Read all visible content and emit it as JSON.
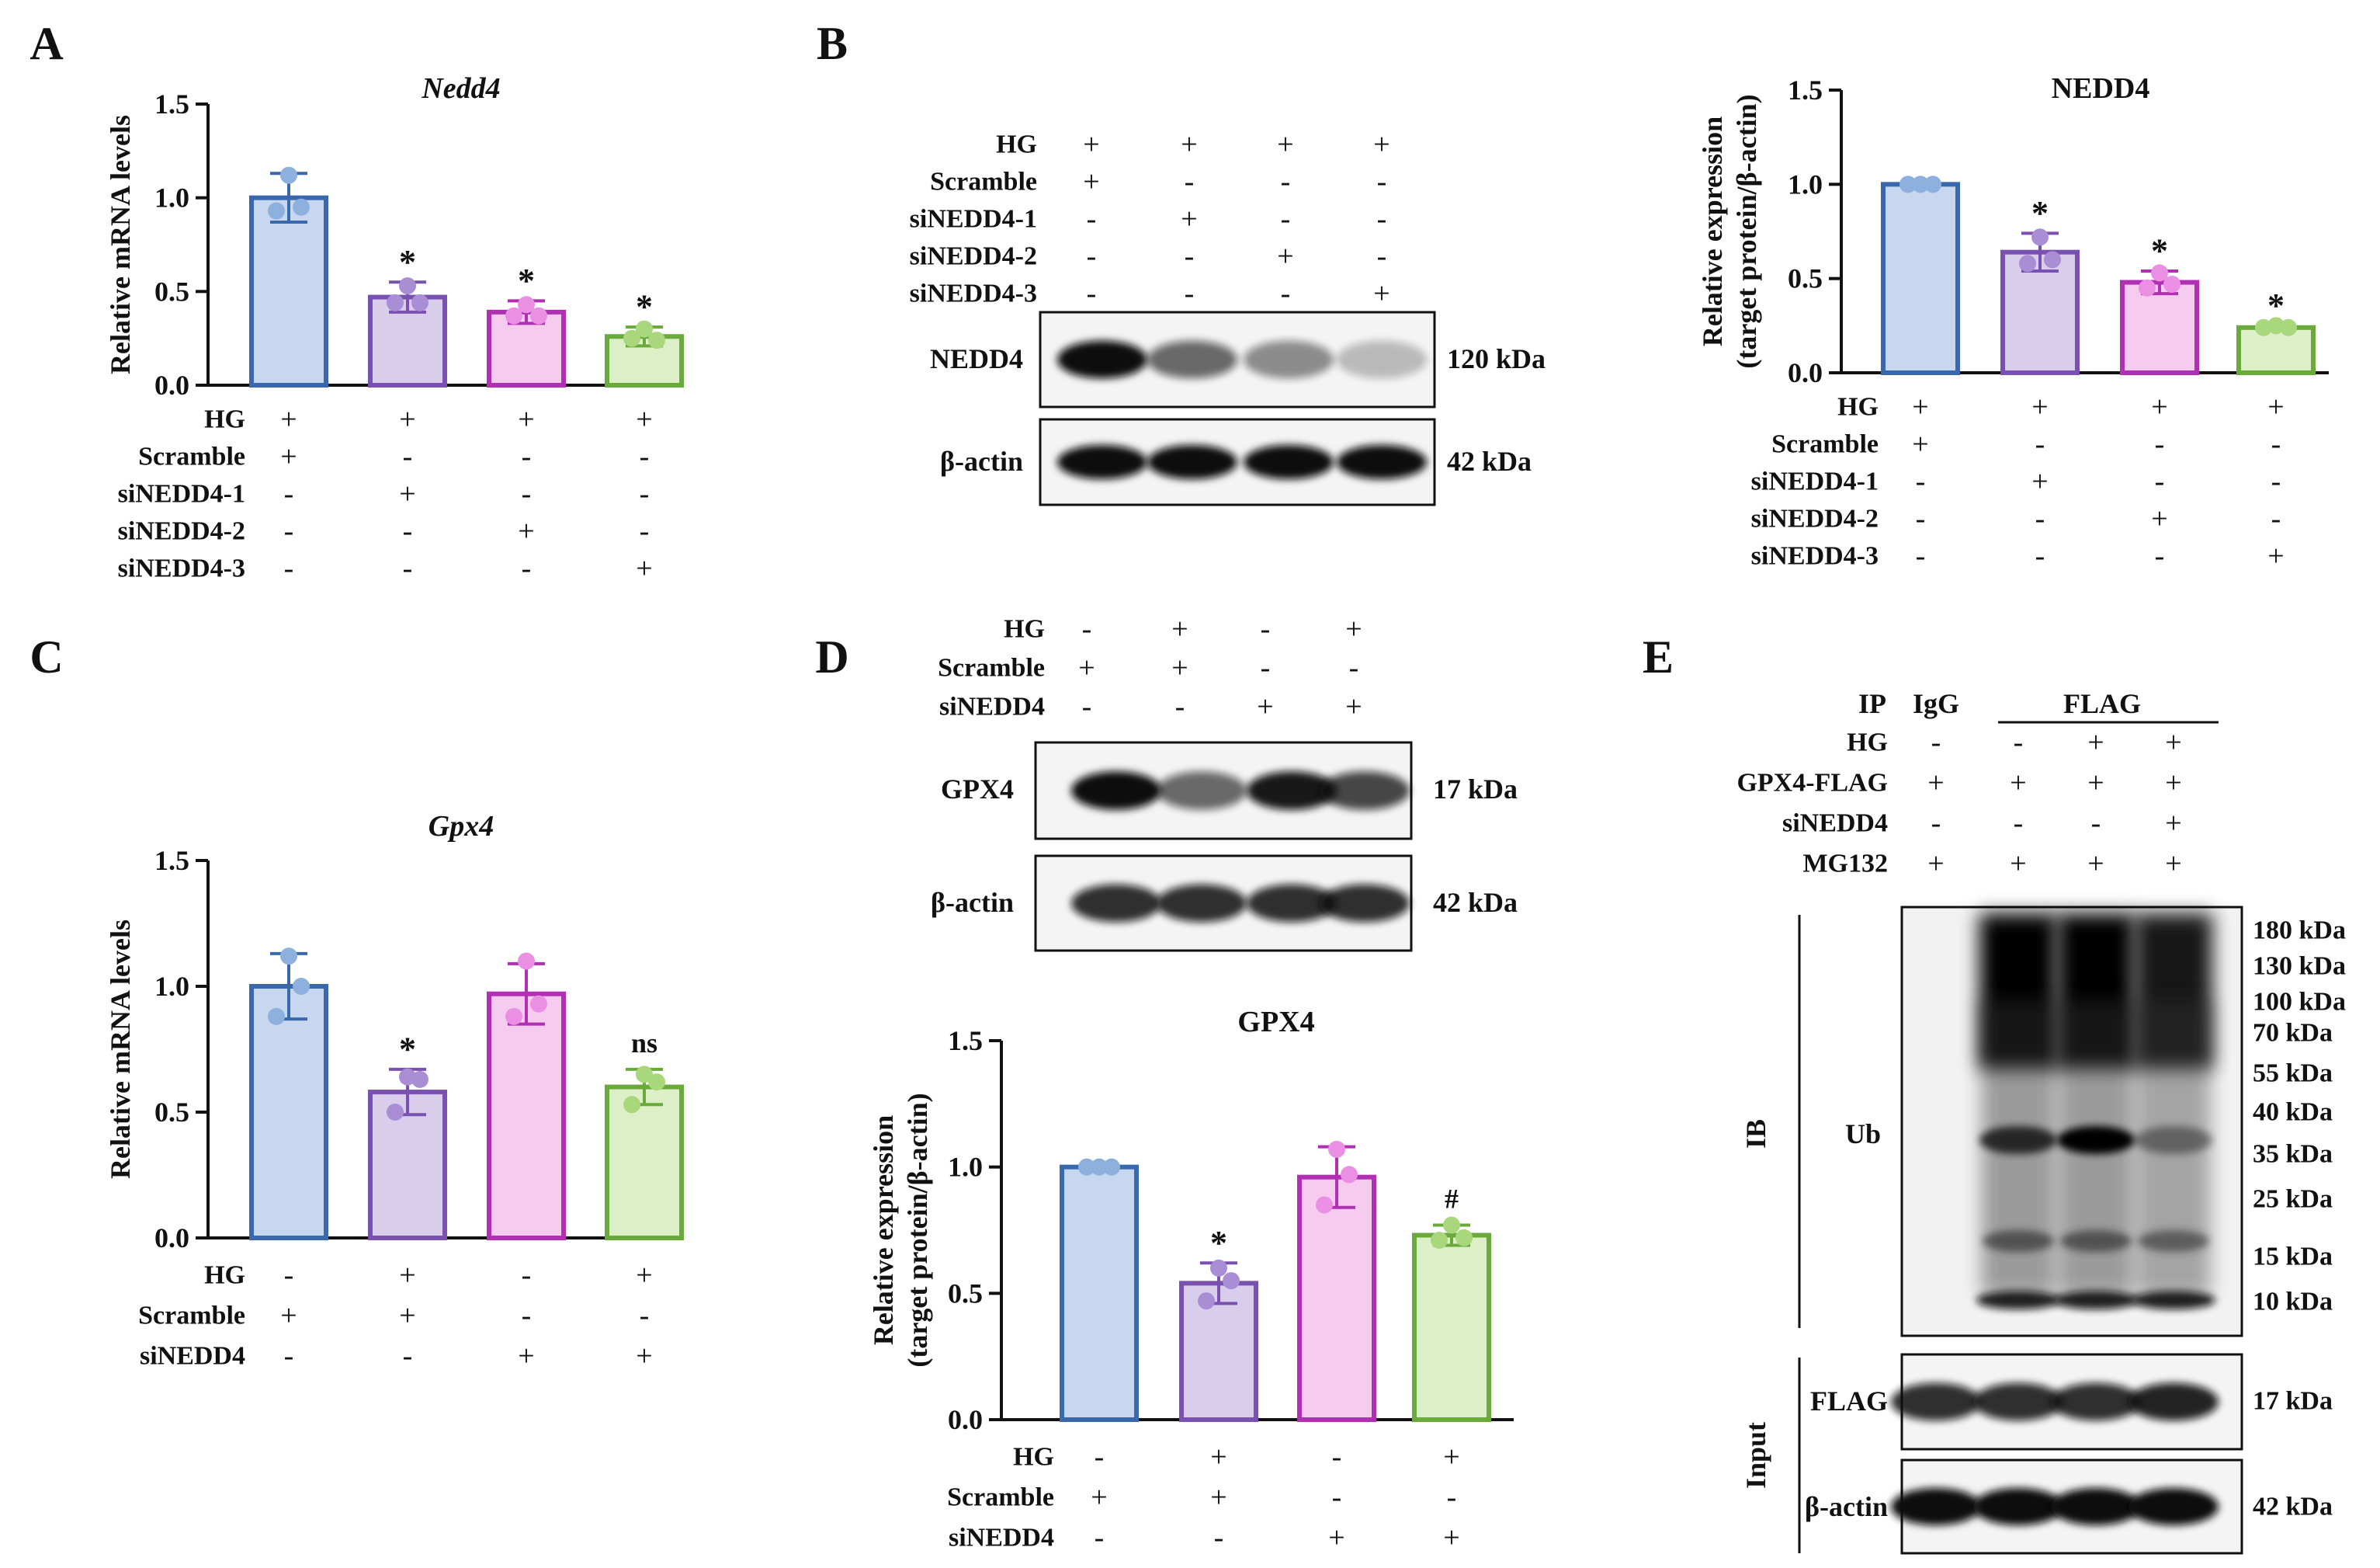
{
  "panels": {
    "A": "A",
    "B": "B",
    "C": "C",
    "D": "D",
    "E": "E"
  },
  "conditions": {
    "A": {
      "rows": [
        {
          "label": "HG",
          "signs": [
            "+",
            "+",
            "+",
            "+"
          ]
        },
        {
          "label": "Scramble",
          "signs": [
            "+",
            "-",
            "-",
            "-"
          ]
        },
        {
          "label": "siNEDD4-1",
          "signs": [
            "-",
            "+",
            "-",
            "-"
          ]
        },
        {
          "label": "siNEDD4-2",
          "signs": [
            "-",
            "-",
            "+",
            "-"
          ]
        },
        {
          "label": "siNEDD4-3",
          "signs": [
            "-",
            "-",
            "-",
            "+"
          ]
        }
      ]
    },
    "B_blot": {
      "rows": [
        {
          "label": "HG",
          "signs": [
            "+",
            "+",
            "+",
            "+"
          ]
        },
        {
          "label": "Scramble",
          "signs": [
            "+",
            "-",
            "-",
            "-"
          ]
        },
        {
          "label": "siNEDD4-1",
          "signs": [
            "-",
            "+",
            "-",
            "-"
          ]
        },
        {
          "label": "siNEDD4-2",
          "signs": [
            "-",
            "-",
            "+",
            "-"
          ]
        },
        {
          "label": "siNEDD4-3",
          "signs": [
            "-",
            "-",
            "-",
            "+"
          ]
        }
      ]
    },
    "B_chart": {
      "rows": [
        {
          "label": "HG",
          "signs": [
            "+",
            "+",
            "+",
            "+"
          ]
        },
        {
          "label": "Scramble",
          "signs": [
            "+",
            "-",
            "-",
            "-"
          ]
        },
        {
          "label": "siNEDD4-1",
          "signs": [
            "-",
            "+",
            "-",
            "-"
          ]
        },
        {
          "label": "siNEDD4-2",
          "signs": [
            "-",
            "-",
            "+",
            "-"
          ]
        },
        {
          "label": "siNEDD4-3",
          "signs": [
            "-",
            "-",
            "-",
            "+"
          ]
        }
      ]
    },
    "C": {
      "rows": [
        {
          "label": "HG",
          "signs": [
            "-",
            "+",
            "-",
            "+"
          ]
        },
        {
          "label": "Scramble",
          "signs": [
            "+",
            "+",
            "-",
            "-"
          ]
        },
        {
          "label": "siNEDD4",
          "signs": [
            "-",
            "-",
            "+",
            "+"
          ]
        }
      ]
    },
    "D_blot": {
      "rows": [
        {
          "label": "HG",
          "signs": [
            "-",
            "+",
            "-",
            "+"
          ]
        },
        {
          "label": "Scramble",
          "signs": [
            "+",
            "+",
            "-",
            "-"
          ]
        },
        {
          "label": "siNEDD4",
          "signs": [
            "-",
            "-",
            "+",
            "+"
          ]
        }
      ]
    },
    "D_chart": {
      "rows": [
        {
          "label": "HG",
          "signs": [
            "-",
            "+",
            "-",
            "+"
          ]
        },
        {
          "label": "Scramble",
          "signs": [
            "+",
            "+",
            "-",
            "-"
          ]
        },
        {
          "label": "siNEDD4",
          "signs": [
            "-",
            "-",
            "+",
            "+"
          ]
        }
      ]
    },
    "E": {
      "rows": [
        {
          "label": "HG",
          "signs": [
            "-",
            "-",
            "+",
            "+"
          ]
        },
        {
          "label": "GPX4-FLAG",
          "signs": [
            "+",
            "+",
            "+",
            "+"
          ]
        },
        {
          "label": "siNEDD4",
          "signs": [
            "-",
            "-",
            "-",
            "+"
          ]
        },
        {
          "label": "MG132",
          "signs": [
            "+",
            "+",
            "+",
            "+"
          ]
        }
      ]
    }
  },
  "blots": {
    "B": {
      "bands": [
        {
          "label": "NEDD4",
          "kda": "120 kDa",
          "intensities": [
            1.0,
            0.6,
            0.45,
            0.25
          ]
        },
        {
          "label": "β-actin",
          "kda": "42 kDa",
          "intensities": [
            1.0,
            1.0,
            1.0,
            1.0
          ]
        }
      ]
    },
    "D": {
      "bands": [
        {
          "label": "GPX4",
          "kda": "17 kDa",
          "intensities": [
            1.0,
            0.6,
            0.95,
            0.75
          ]
        },
        {
          "label": "β-actin",
          "kda": "42 kDa",
          "intensities": [
            0.85,
            0.85,
            0.85,
            0.85
          ]
        }
      ]
    },
    "E": {
      "ip_label": "IP",
      "igg_label": "IgG",
      "flag_label": "FLAG",
      "ib_label": "IB",
      "input_label": "Input",
      "ub_label": "Ub",
      "ub_smear": [
        0.0,
        1.0,
        1.0,
        0.9
      ],
      "ub_band35": [
        0.0,
        0.75,
        1.0,
        0.4
      ],
      "markers": [
        "180 kDa",
        "130 kDa",
        "100 kDa",
        "70 kDa",
        "55 kDa",
        "40 kDa",
        "35 kDa",
        "25 kDa",
        "15 kDa",
        "10 kDa"
      ],
      "input_bands": [
        {
          "label": "FLAG",
          "kda": "17 kDa",
          "intensities": [
            0.85,
            0.85,
            0.85,
            0.9
          ]
        },
        {
          "label": "β-actin",
          "kda": "42 kDa",
          "intensities": [
            1.0,
            1.0,
            1.0,
            1.0
          ]
        }
      ]
    }
  },
  "chart_data": [
    {
      "panel": "A",
      "type": "bar",
      "title": "Nedd4",
      "title_italic": true,
      "ylabel": "Relative mRNA levels",
      "ylim": [
        0,
        1.5
      ],
      "yticks": [
        "0.0",
        "0.5",
        "1.0",
        "1.5"
      ],
      "ytick_values": [
        0,
        0.5,
        1.0,
        1.5
      ],
      "values": [
        1.0,
        0.47,
        0.39,
        0.26
      ],
      "err": [
        0.13,
        0.08,
        0.06,
        0.05
      ],
      "points": [
        [
          1.12,
          0.93,
          0.95
        ],
        [
          0.53,
          0.44,
          0.44
        ],
        [
          0.43,
          0.37,
          0.37
        ],
        [
          0.3,
          0.25,
          0.24
        ]
      ],
      "sig": [
        "",
        "*",
        "*",
        "*"
      ]
    },
    {
      "panel": "B",
      "type": "bar",
      "title": "NEDD4",
      "title_italic": false,
      "ylabel": "Relative expression",
      "ylabel2": "(target protein/β-actin)",
      "ylim": [
        0,
        1.5
      ],
      "yticks": [
        "0.0",
        "0.5",
        "1.0",
        "1.5"
      ],
      "ytick_values": [
        0,
        0.5,
        1.0,
        1.5
      ],
      "values": [
        1.0,
        0.64,
        0.48,
        0.24
      ],
      "err": [
        0.0,
        0.1,
        0.06,
        0.01
      ],
      "points": [
        [
          1.0,
          1.0,
          1.0
        ],
        [
          0.72,
          0.58,
          0.6
        ],
        [
          0.53,
          0.45,
          0.47
        ],
        [
          0.25,
          0.24,
          0.24
        ]
      ],
      "sig": [
        "",
        "*",
        "*",
        "*"
      ]
    },
    {
      "panel": "C",
      "type": "bar",
      "title": "Gpx4",
      "title_italic": true,
      "ylabel": "Relative mRNA levels",
      "ylim": [
        0,
        1.5
      ],
      "yticks": [
        "0.0",
        "0.5",
        "1.0",
        "1.5"
      ],
      "ytick_values": [
        0,
        0.5,
        1.0,
        1.5
      ],
      "values": [
        1.0,
        0.58,
        0.97,
        0.6
      ],
      "err": [
        0.13,
        0.09,
        0.12,
        0.07
      ],
      "points": [
        [
          1.12,
          0.88,
          1.0
        ],
        [
          0.64,
          0.5,
          0.63
        ],
        [
          1.1,
          0.88,
          0.93
        ],
        [
          0.65,
          0.53,
          0.62
        ]
      ],
      "sig": [
        "",
        "*",
        "",
        "ns"
      ]
    },
    {
      "panel": "D",
      "type": "bar",
      "title": "GPX4",
      "title_italic": false,
      "ylabel": "Relative expression",
      "ylabel2": "(target protein/β-actin)",
      "ylim": [
        0,
        1.5
      ],
      "yticks": [
        "0.0",
        "0.5",
        "1.0",
        "1.5"
      ],
      "ytick_values": [
        0,
        0.5,
        1.0,
        1.5
      ],
      "values": [
        1.0,
        0.54,
        0.96,
        0.73
      ],
      "err": [
        0.0,
        0.08,
        0.12,
        0.04
      ],
      "points": [
        [
          1.0,
          1.0,
          1.0
        ],
        [
          0.6,
          0.47,
          0.55
        ],
        [
          1.07,
          0.85,
          0.97
        ],
        [
          0.77,
          0.71,
          0.72
        ]
      ],
      "sig": [
        "",
        "*",
        "",
        "#"
      ]
    }
  ],
  "colors": {
    "fills": [
      "#c6d7ef",
      "#d9cdec",
      "#f5ccf0",
      "#dcefc6"
    ],
    "edges": [
      "#3a68ad",
      "#7a50b0",
      "#b02fb3",
      "#6aaa3a"
    ],
    "dots": [
      "#8eb0de",
      "#a98ed6",
      "#ea8fe3",
      "#a9d77c"
    ]
  }
}
